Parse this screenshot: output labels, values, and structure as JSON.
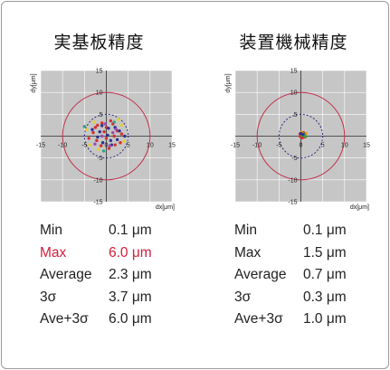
{
  "charts": [
    {
      "title": "実基板精度",
      "stats": [
        {
          "label": "Min",
          "value": "0.1 μm"
        },
        {
          "label": "Max",
          "value": "6.0 μm"
        },
        {
          "label": "Average",
          "value": "2.3 μm"
        },
        {
          "label": "3σ",
          "value": "3.7 μm"
        },
        {
          "label": "Ave+3σ",
          "value": "6.0 μm"
        }
      ],
      "highlight_row": 1,
      "highlight_color": "#d0203a"
    },
    {
      "title": "装置機械精度",
      "stats": [
        {
          "label": "Min",
          "value": "0.1 μm"
        },
        {
          "label": "Max",
          "value": "1.5 μm"
        },
        {
          "label": "Average",
          "value": "0.7 μm"
        },
        {
          "label": "3σ",
          "value": "0.3 μm"
        },
        {
          "label": "Ave+3σ",
          "value": "1.0 μm"
        }
      ],
      "highlight_row": -1,
      "highlight_color": "#d0203a"
    }
  ],
  "chart_data": [
    {
      "type": "scatter",
      "title": "実基板精度",
      "xlabel": "dx[μm]",
      "ylabel": "dy[μm]",
      "xlim": [
        -15,
        15
      ],
      "ylim": [
        -15,
        15
      ],
      "ticks": [
        -15,
        -10,
        -5,
        0,
        5,
        10,
        15
      ],
      "grid": true,
      "background": "#c6c6c6",
      "circles": [
        {
          "radius": 10,
          "style": "solid",
          "color": "#c0304a"
        },
        {
          "radius": 5,
          "style": "dashed",
          "color": "#2a2a80"
        }
      ],
      "series": [
        {
          "color": "#d23030",
          "points": [
            [
              -2,
              2.5
            ],
            [
              -1,
              3
            ],
            [
              0,
              2
            ],
            [
              1.5,
              2.8
            ],
            [
              2.5,
              1.2
            ],
            [
              -3,
              0.8
            ],
            [
              -2.2,
              -1
            ],
            [
              0,
              -0.5
            ],
            [
              1.8,
              0
            ],
            [
              3.2,
              -1.5
            ],
            [
              -1.2,
              -2.2
            ],
            [
              0.6,
              -2.8
            ],
            [
              -0.5,
              1
            ],
            [
              2,
              -2
            ],
            [
              -2.5,
              2
            ],
            [
              3.5,
              0.5
            ],
            [
              -4,
              -0.5
            ],
            [
              1,
              3.5
            ]
          ]
        },
        {
          "color": "#2a3590",
          "points": [
            [
              -1.5,
              1
            ],
            [
              0.5,
              1.8
            ],
            [
              2,
              2
            ],
            [
              -2,
              -0.2
            ],
            [
              1,
              -1
            ],
            [
              3,
              1.2
            ],
            [
              -0.8,
              -1.5
            ],
            [
              2.5,
              -0.8
            ],
            [
              -1,
              2.4
            ],
            [
              4.2,
              0
            ],
            [
              0.3,
              0.2
            ],
            [
              -3.2,
              1.5
            ],
            [
              1.2,
              -2
            ]
          ]
        },
        {
          "color": "#e6d030",
          "points": [
            [
              -4.5,
              1.5
            ],
            [
              -3.8,
              -2
            ],
            [
              3.5,
              2.5
            ],
            [
              -2.8,
              3.2
            ],
            [
              4,
              -1.2
            ],
            [
              -1.8,
              -3
            ],
            [
              2.8,
              3.8
            ]
          ]
        },
        {
          "color": "#9a4ab0",
          "points": [
            [
              -0.3,
              2.8
            ],
            [
              1.5,
              0.8
            ],
            [
              -2.6,
              -1.8
            ],
            [
              0.8,
              -2.2
            ],
            [
              2.2,
              1.6
            ],
            [
              -1,
              0
            ]
          ]
        },
        {
          "color": "#30a080",
          "points": [
            [
              -5,
              2.2
            ],
            [
              1.8,
              3.2
            ],
            [
              -0.6,
              -3.4
            ]
          ]
        }
      ]
    },
    {
      "type": "scatter",
      "title": "装置機械精度",
      "xlabel": "dx[μm]",
      "ylabel": "dy[μm]",
      "xlim": [
        -15,
        15
      ],
      "ylim": [
        -15,
        15
      ],
      "ticks": [
        -15,
        -10,
        -5,
        0,
        5,
        10,
        15
      ],
      "grid": true,
      "background": "#c6c6c6",
      "circles": [
        {
          "radius": 10,
          "style": "solid",
          "color": "#c0304a"
        },
        {
          "radius": 5,
          "style": "dashed",
          "color": "#2a2a80"
        }
      ],
      "series": [
        {
          "color": "#d23030",
          "points": [
            [
              0.2,
              0.3
            ],
            [
              0.5,
              0.1
            ],
            [
              -0.2,
              0.5
            ],
            [
              0.8,
              -0.2
            ],
            [
              0.3,
              -0.4
            ],
            [
              1.0,
              0.4
            ],
            [
              0.6,
              0.8
            ],
            [
              -0.1,
              -0.1
            ]
          ]
        },
        {
          "color": "#e69a20",
          "points": [
            [
              0.4,
              0.6
            ],
            [
              0.9,
              0.2
            ],
            [
              0.1,
              0.9
            ],
            [
              1.2,
              0.6
            ]
          ]
        },
        {
          "color": "#30a040",
          "points": [
            [
              0.7,
              0.5
            ],
            [
              0.3,
              0.2
            ],
            [
              1.1,
              -0.1
            ]
          ]
        },
        {
          "color": "#2a3590",
          "points": [
            [
              0.5,
              0.4
            ],
            [
              0.0,
              0.6
            ]
          ]
        }
      ]
    }
  ]
}
